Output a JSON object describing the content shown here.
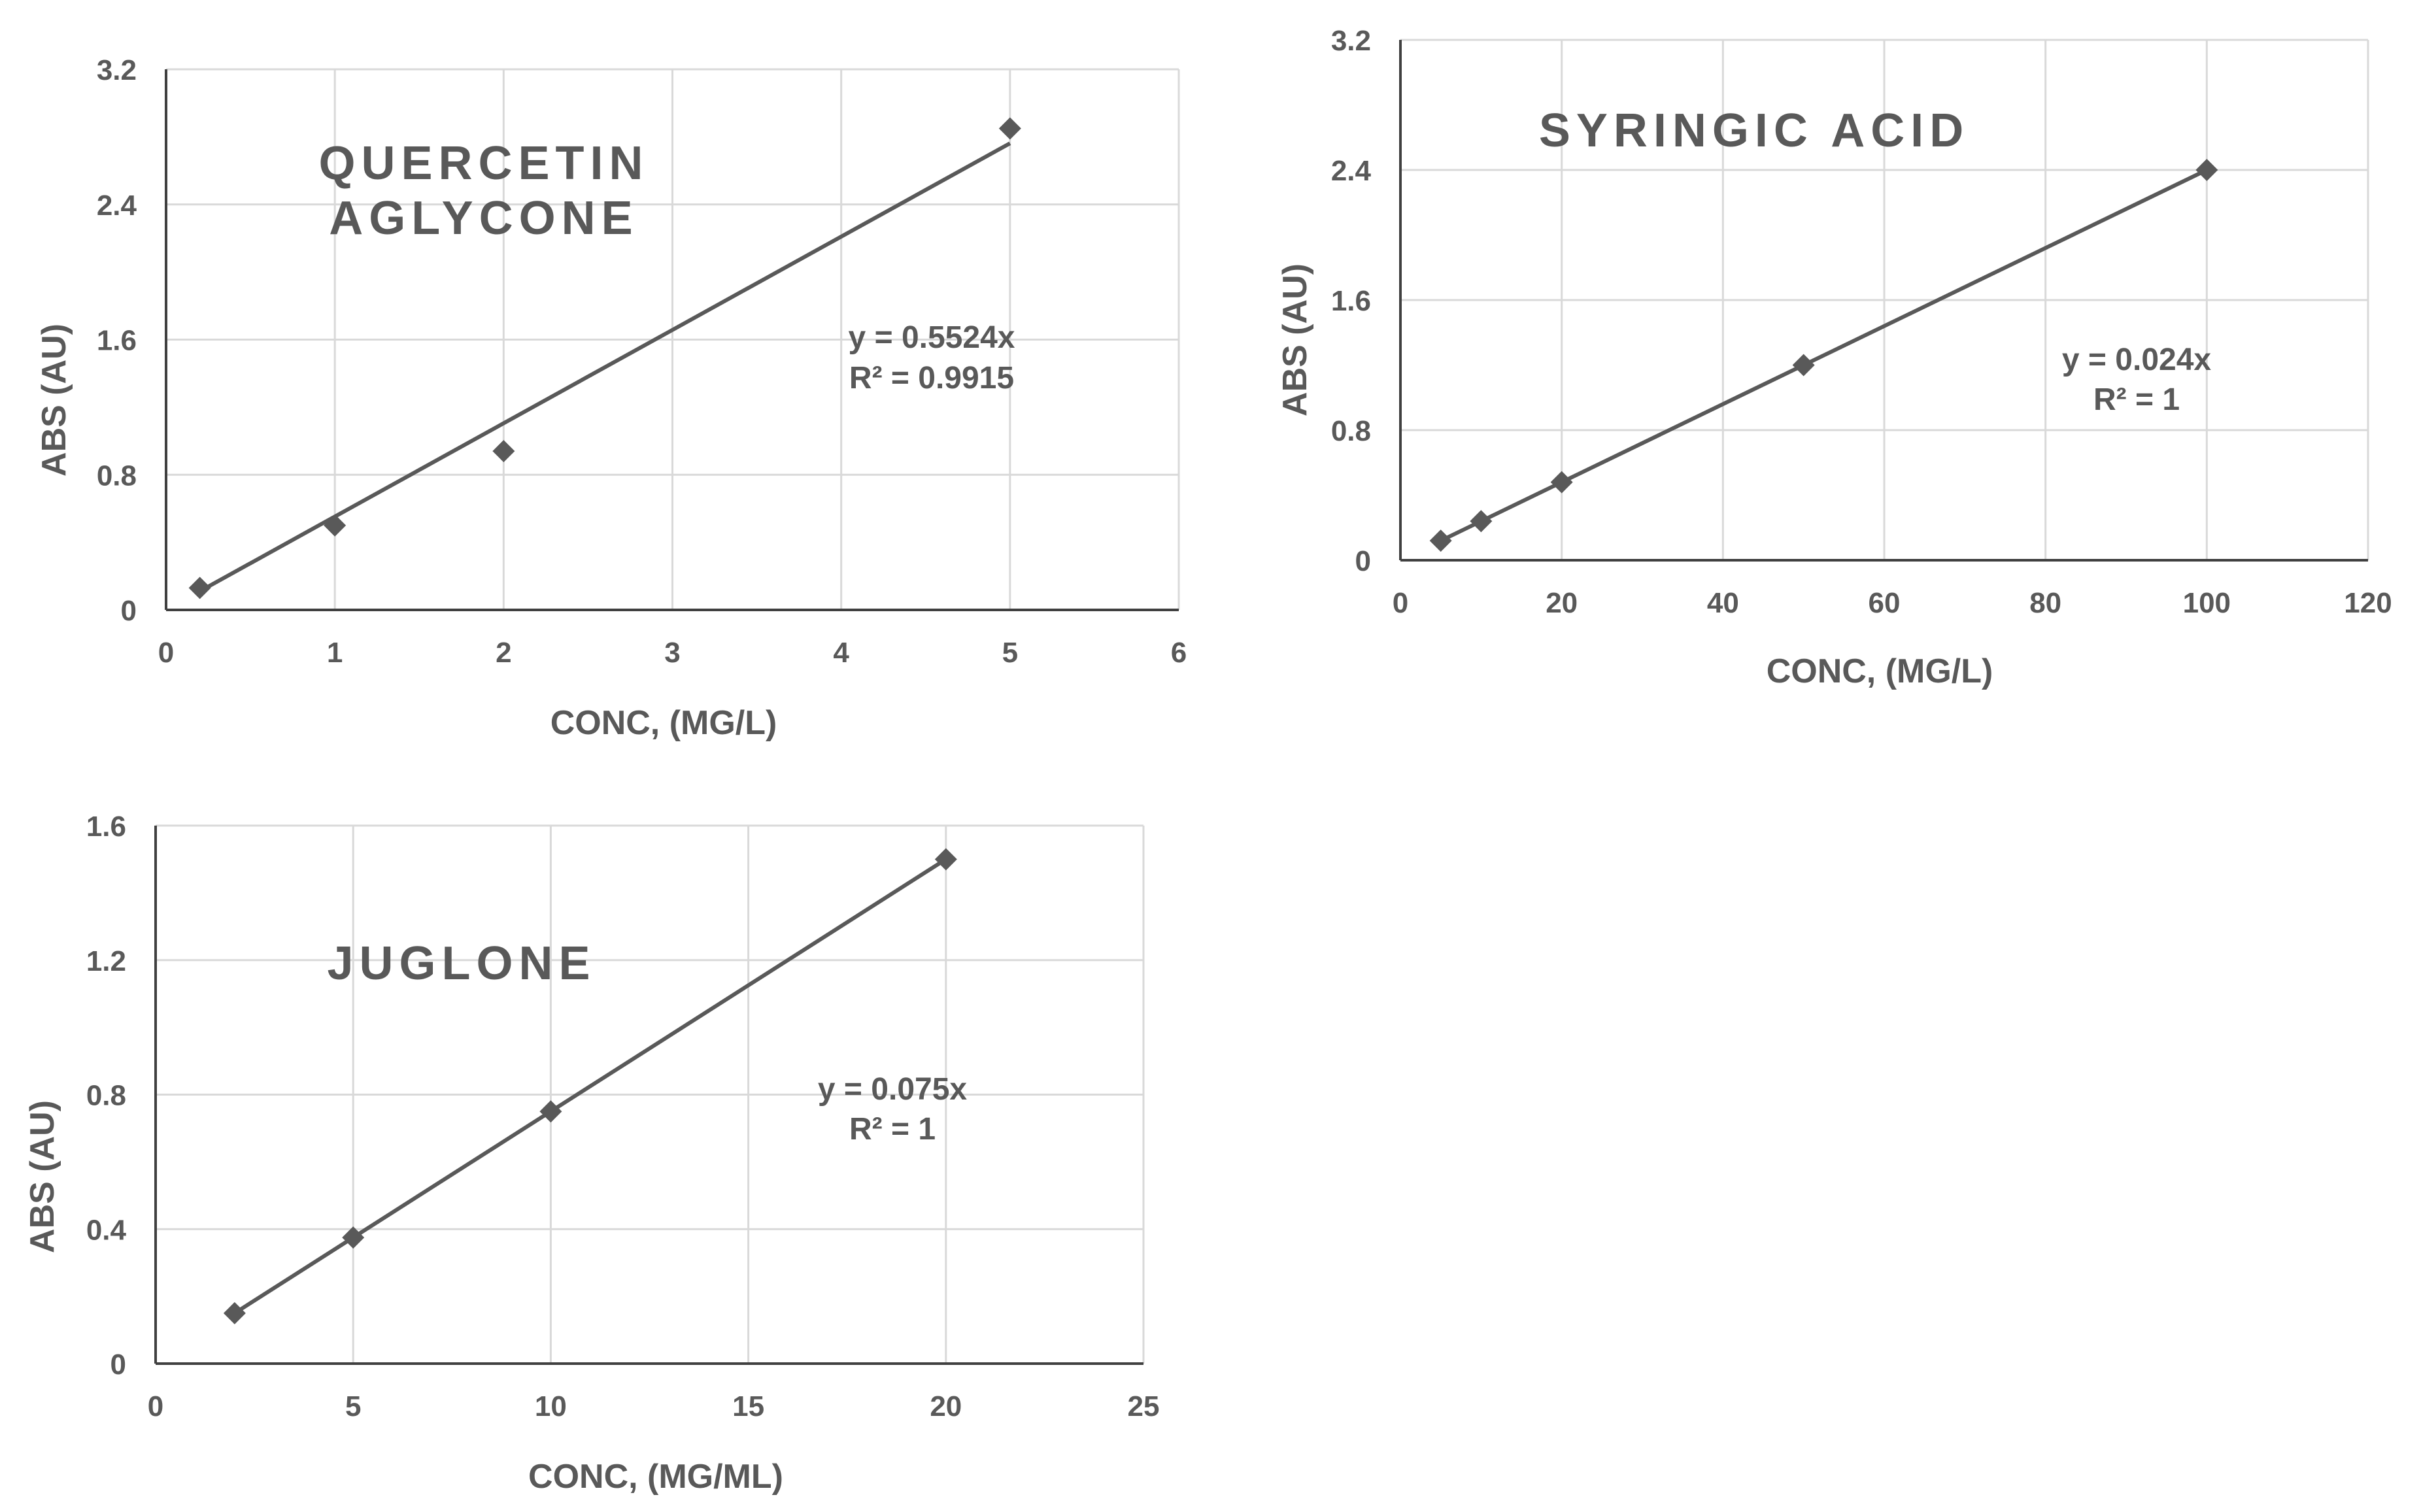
{
  "chart_data": [
    {
      "type": "scatter",
      "title_lines": [
        "QUERCETIN",
        "AGLYCONE"
      ],
      "xlabel": "CONC, (MG/L)",
      "ylabel": "ABS (AU)",
      "xlim": [
        0,
        6
      ],
      "ylim": [
        0,
        3.2
      ],
      "xticks": [
        0,
        1,
        2,
        3,
        4,
        5,
        6
      ],
      "yticks": [
        0,
        0.8,
        1.6,
        2.4,
        3.2
      ],
      "x_tick_labels": [
        "0",
        "1",
        "2",
        "3",
        "4",
        "5",
        "6"
      ],
      "y_tick_labels": [
        "0",
        "0.8",
        "1.6",
        "2.4",
        "3.2"
      ],
      "grid": true,
      "series": [
        {
          "x": [
            0.2,
            1,
            2,
            5
          ],
          "y": [
            0.13,
            0.5,
            0.94,
            2.85
          ]
        }
      ],
      "trendline": {
        "slope": 0.5524,
        "x_range": [
          0.2,
          5
        ]
      },
      "equation_lines": [
        "y = 0.5524x",
        "R² = 0.9915"
      ],
      "marker": "diamond",
      "color": "#595959"
    },
    {
      "type": "scatter",
      "title_lines": [
        "SYRINGIC ACID"
      ],
      "xlabel": "CONC, (MG/L)",
      "ylabel": "ABS (AU)",
      "xlim": [
        0,
        120
      ],
      "ylim": [
        0,
        3.2
      ],
      "xticks": [
        0,
        20,
        40,
        60,
        80,
        100,
        120
      ],
      "yticks": [
        0,
        0.8,
        1.6,
        2.4,
        3.2
      ],
      "x_tick_labels": [
        "0",
        "20",
        "40",
        "60",
        "80",
        "100",
        "120"
      ],
      "y_tick_labels": [
        "0",
        "0.8",
        "1.6",
        "2.4",
        "3.2"
      ],
      "grid": true,
      "series": [
        {
          "x": [
            5,
            10,
            20,
            50,
            100
          ],
          "y": [
            0.12,
            0.24,
            0.48,
            1.2,
            2.4
          ]
        }
      ],
      "trendline": {
        "slope": 0.024,
        "x_range": [
          5,
          100
        ]
      },
      "equation_lines": [
        "y = 0.024x",
        "R² = 1"
      ],
      "marker": "diamond",
      "color": "#595959"
    },
    {
      "type": "scatter",
      "title_lines": [
        "JUGLONE"
      ],
      "xlabel": "CONC, (MG/ML)",
      "ylabel": "ABS (AU)",
      "xlim": [
        0,
        25
      ],
      "ylim": [
        0,
        1.6
      ],
      "xticks": [
        0,
        5,
        10,
        15,
        20,
        25
      ],
      "yticks": [
        0,
        0.4,
        0.8,
        1.2,
        1.6
      ],
      "x_tick_labels": [
        "0",
        "5",
        "10",
        "15",
        "20",
        "25"
      ],
      "y_tick_labels": [
        "0",
        "0.4",
        "0.8",
        "1.2",
        "1.6"
      ],
      "grid": true,
      "series": [
        {
          "x": [
            2,
            5,
            10,
            20
          ],
          "y": [
            0.15,
            0.375,
            0.75,
            1.5
          ]
        }
      ],
      "trendline": {
        "slope": 0.075,
        "x_range": [
          2,
          20
        ]
      },
      "equation_lines": [
        "y = 0.075x",
        "R² = 1"
      ],
      "marker": "diamond",
      "color": "#595959"
    }
  ]
}
